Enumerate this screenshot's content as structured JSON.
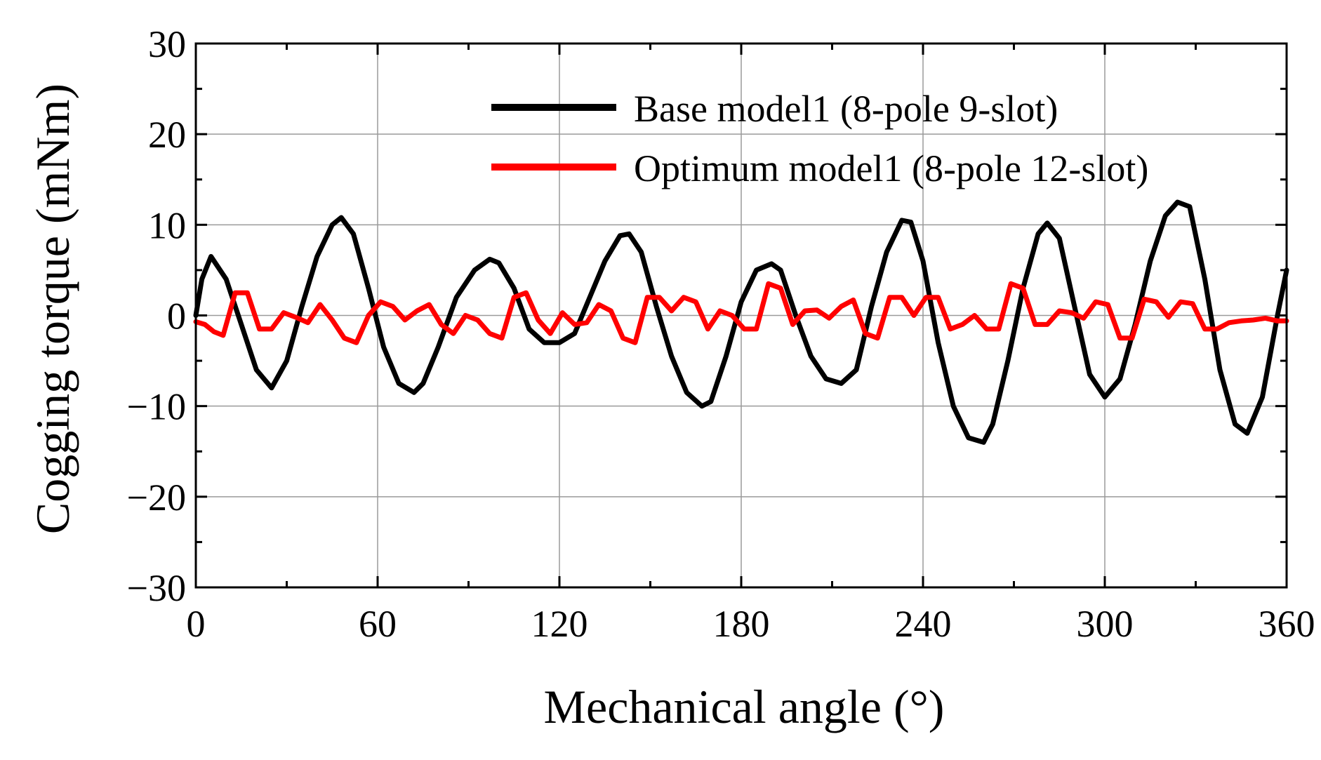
{
  "chart_data": {
    "type": "line",
    "title": "",
    "xlabel": "Mechanical angle (°)",
    "ylabel": "Cogging torque (mNm)",
    "xlim": [
      0,
      360
    ],
    "ylim": [
      -30,
      30
    ],
    "xticks": [
      0,
      60,
      120,
      180,
      240,
      300,
      360
    ],
    "yticks": [
      30,
      20,
      10,
      0,
      -10,
      -20,
      -30
    ],
    "xtick_labels": [
      "0",
      "60",
      "120",
      "180",
      "240",
      "300",
      "360"
    ],
    "ytick_labels": [
      "30",
      "20",
      "10",
      "0",
      "−10",
      "−20",
      "−30"
    ],
    "grid": true,
    "legend_position": "top-right",
    "series": [
      {
        "name": "Base model1 (8-pole  9-slot)",
        "color": "#000000",
        "x": [
          0,
          2,
          5,
          10,
          15,
          20,
          25,
          30,
          35,
          40,
          45,
          48,
          52,
          57,
          62,
          67,
          72,
          75,
          80,
          86,
          92,
          97,
          100,
          105,
          110,
          115,
          120,
          125,
          130,
          135,
          140,
          143,
          147,
          152,
          157,
          162,
          167,
          170,
          175,
          180,
          185,
          190,
          193,
          198,
          203,
          208,
          213,
          218,
          223,
          228,
          233,
          236,
          240,
          245,
          250,
          255,
          260,
          263,
          268,
          273,
          278,
          281,
          285,
          290,
          295,
          300,
          305,
          310,
          315,
          320,
          324,
          328,
          333,
          338,
          343,
          347,
          352,
          357,
          360
        ],
        "y": [
          0,
          4,
          6.5,
          4,
          -1,
          -6,
          -8,
          -5,
          1,
          6.5,
          10,
          10.8,
          9,
          3,
          -3.5,
          -7.5,
          -8.5,
          -7.5,
          -3.5,
          2,
          5,
          6.2,
          5.8,
          3,
          -1.5,
          -3,
          -3,
          -2,
          2,
          6,
          8.8,
          9,
          7,
          1,
          -4.5,
          -8.5,
          -10,
          -9.5,
          -4.5,
          1.5,
          5,
          5.7,
          5,
          0,
          -4.5,
          -7,
          -7.5,
          -6,
          1,
          7,
          10.5,
          10.3,
          6,
          -3,
          -10,
          -13.5,
          -14,
          -12,
          -5,
          3,
          9,
          10.2,
          8.5,
          1,
          -6.5,
          -9,
          -7,
          -1,
          6,
          11,
          12.5,
          12,
          4,
          -6,
          -12,
          -13,
          -9,
          0,
          5
        ]
      },
      {
        "name": "Optimum model1 (8-pole  12-slot)",
        "color": "#ff0000",
        "x": [
          0,
          3,
          6,
          9,
          13,
          17,
          21,
          25,
          29,
          33,
          37,
          41,
          45,
          49,
          53,
          57,
          61,
          65,
          69,
          73,
          77,
          81,
          85,
          89,
          93,
          97,
          101,
          105,
          109,
          113,
          117,
          121,
          125,
          129,
          133,
          137,
          141,
          145,
          149,
          153,
          157,
          161,
          165,
          169,
          173,
          177,
          181,
          185,
          189,
          193,
          197,
          201,
          205,
          209,
          213,
          217,
          221,
          225,
          229,
          233,
          237,
          241,
          245,
          249,
          253,
          257,
          261,
          265,
          269,
          273,
          277,
          281,
          285,
          289,
          293,
          297,
          301,
          305,
          309,
          313,
          317,
          321,
          325,
          329,
          333,
          337,
          341,
          345,
          349,
          353,
          357,
          360
        ],
        "y": [
          -0.7,
          -1,
          -1.8,
          -2.2,
          2.5,
          2.5,
          -1.5,
          -1.5,
          0.3,
          -0.2,
          -0.8,
          1.2,
          -0.5,
          -2.5,
          -3,
          0,
          1.5,
          1,
          -0.5,
          0.5,
          1.2,
          -1,
          -2,
          0,
          -0.5,
          -2,
          -2.5,
          2,
          2.5,
          -0.5,
          -2,
          0.3,
          -1,
          -0.8,
          1.2,
          0.5,
          -2.5,
          -3,
          2,
          2,
          0.5,
          2,
          1.5,
          -1.5,
          0.5,
          0,
          -1.5,
          -1.5,
          3.5,
          3,
          -1,
          0.5,
          0.6,
          -0.3,
          1,
          1.7,
          -2,
          -2.5,
          2,
          2,
          0,
          2,
          2,
          -1.5,
          -1,
          0,
          -1.5,
          -1.5,
          3.5,
          3,
          -1,
          -1,
          0.5,
          0.3,
          -0.3,
          1.5,
          1.2,
          -2.5,
          -2.5,
          1.8,
          1.5,
          -0.2,
          1.5,
          1.3,
          -1.5,
          -1.5,
          -0.8,
          -0.6,
          -0.5,
          -0.3,
          -0.6,
          -0.6
        ]
      }
    ]
  }
}
